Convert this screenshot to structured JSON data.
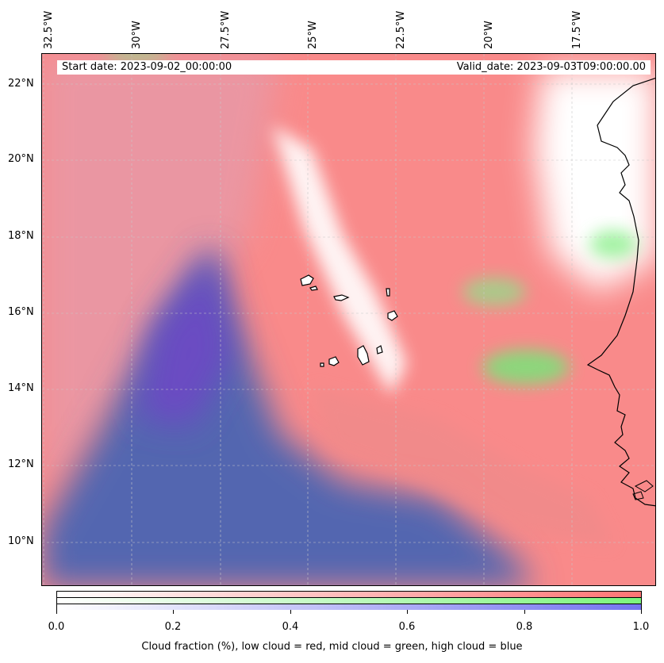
{
  "map": {
    "start_date": "Start date: 2023-09-02_00:00:00",
    "valid_date": "Valid_date: 2023-09-03T09:00:00.00",
    "lon_labels": [
      "32.5°W",
      "30°W",
      "27.5°W",
      "25°W",
      "22.5°W",
      "20°W",
      "17.5°W"
    ],
    "lat_labels": [
      "22°N",
      "20°N",
      "18°N",
      "16°N",
      "14°N",
      "12°N",
      "10°N"
    ],
    "colors": {
      "low_cloud": "#ff7474",
      "mid_cloud": "#7cf67c",
      "high_cloud": "#7474f0"
    }
  },
  "colorbar": {
    "ticks": [
      "0.0",
      "0.2",
      "0.4",
      "0.6",
      "0.8",
      "1.0"
    ],
    "label": "Cloud fraction (%), low cloud = red, mid cloud = green, high cloud = blue"
  }
}
